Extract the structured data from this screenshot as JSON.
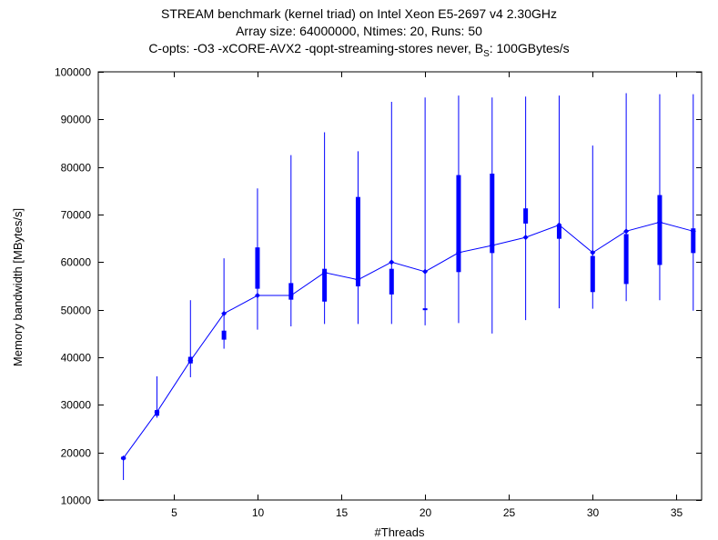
{
  "chart_data": {
    "type": "line",
    "title": "STREAM benchmark (kernel triad) on Intel Xeon E5-2697 v4 2.30GHz",
    "subtitle_1": "Array size: 64000000, Ntimes: 20, Runs: 50",
    "subtitle_2_prefix": "C-opts: -O3 -xCORE-AVX2 -qopt-streaming-stores never, B",
    "subtitle_2_sub": "S",
    "subtitle_2_suffix": ": 100GBytes/s",
    "xlabel": "#Threads",
    "ylabel": "Memory bandwidth [MBytes/s]",
    "xlim": [
      0.5,
      36.5
    ],
    "ylim": [
      10000,
      100000
    ],
    "xticks": [
      5,
      10,
      15,
      20,
      25,
      30,
      35
    ],
    "yticks": [
      10000,
      20000,
      30000,
      40000,
      50000,
      60000,
      70000,
      80000,
      90000,
      100000
    ],
    "grid": false,
    "color": "#0000ff",
    "series": [
      {
        "x": [
          2,
          4,
          6,
          8,
          10,
          12,
          14,
          16,
          18,
          20,
          22,
          24,
          26,
          28,
          30,
          32,
          34,
          36
        ],
        "mean": [
          18800,
          28500,
          39300,
          49200,
          53000,
          53000,
          57800,
          56300,
          60000,
          58000,
          62000,
          63500,
          65200,
          67800,
          62000,
          66500,
          68400,
          66500
        ],
        "min": [
          14200,
          27300,
          35800,
          41800,
          45800,
          46500,
          47000,
          47000,
          47000,
          46700,
          47200,
          45000,
          47800,
          50300,
          50200,
          51800,
          52000,
          49800
        ],
        "max": [
          19000,
          36000,
          52000,
          60800,
          75500,
          82500,
          87300,
          83300,
          93700,
          94600,
          95000,
          94600,
          94800,
          95000,
          84500,
          95500,
          95300,
          95300
        ],
        "q1": [
          18600,
          27800,
          38800,
          43800,
          54500,
          52200,
          51800,
          55000,
          53300,
          50000,
          58000,
          62000,
          68200,
          65000,
          53800,
          55500,
          59500,
          62000
        ],
        "q3": [
          19000,
          28800,
          40000,
          45500,
          63000,
          55500,
          58500,
          73600,
          58500,
          50200,
          78200,
          78500,
          71200,
          67500,
          61200,
          65800,
          74000,
          67000
        ]
      }
    ]
  }
}
